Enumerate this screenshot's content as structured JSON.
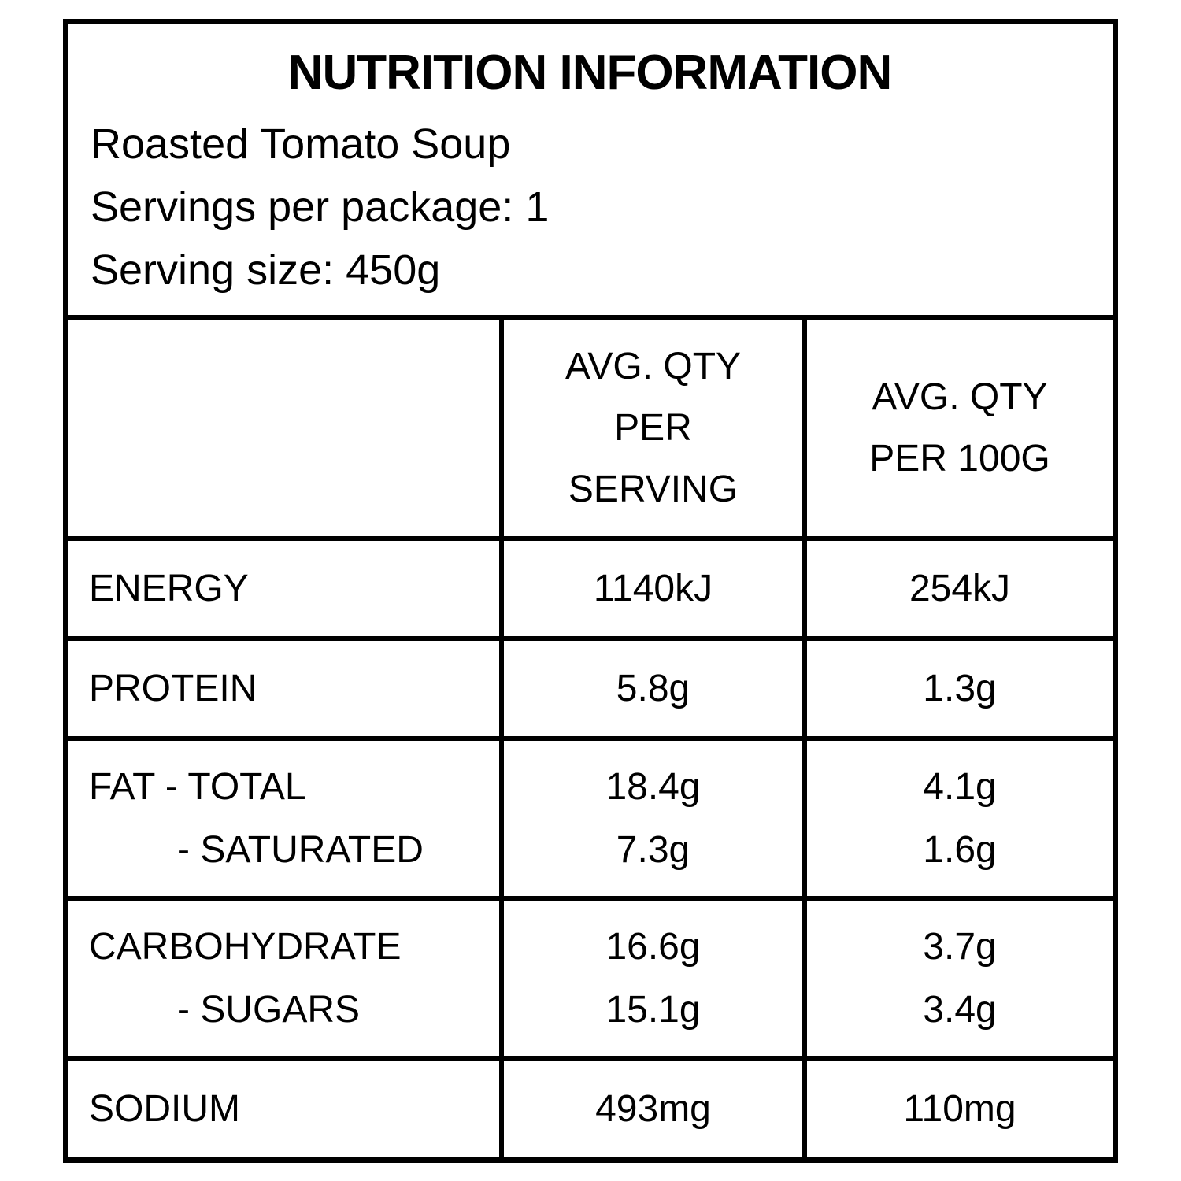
{
  "header": {
    "title": "NUTRITION INFORMATION",
    "product": "Roasted Tomato Soup",
    "servings_per_package": "Servings per package: 1",
    "serving_size": "Serving size: 450g"
  },
  "table": {
    "columns": {
      "row_label": "",
      "per_serving_lines": [
        "AVG. QTY",
        "PER",
        "SERVING"
      ],
      "per_100g_lines": [
        "AVG. QTY",
        "PER 100G"
      ]
    },
    "rows": [
      {
        "label": [
          "ENERGY"
        ],
        "per_serving": [
          "1140kJ"
        ],
        "per_100g": [
          "254kJ"
        ]
      },
      {
        "label": [
          "PROTEIN"
        ],
        "per_serving": [
          "5.8g"
        ],
        "per_100g": [
          "1.3g"
        ]
      },
      {
        "label": [
          "FAT - TOTAL",
          "- SATURATED"
        ],
        "per_serving": [
          "18.4g",
          "7.3g"
        ],
        "per_100g": [
          "4.1g",
          "1.6g"
        ]
      },
      {
        "label": [
          "CARBOHYDRATE",
          "- SUGARS"
        ],
        "per_serving": [
          "16.6g",
          "15.1g"
        ],
        "per_100g": [
          "3.7g",
          "3.4g"
        ]
      },
      {
        "label": [
          "SODIUM"
        ],
        "per_serving": [
          "493mg"
        ],
        "per_100g": [
          "110mg"
        ]
      }
    ]
  },
  "colors": {
    "border": "#000000",
    "background": "#ffffff",
    "text": "#000000"
  }
}
